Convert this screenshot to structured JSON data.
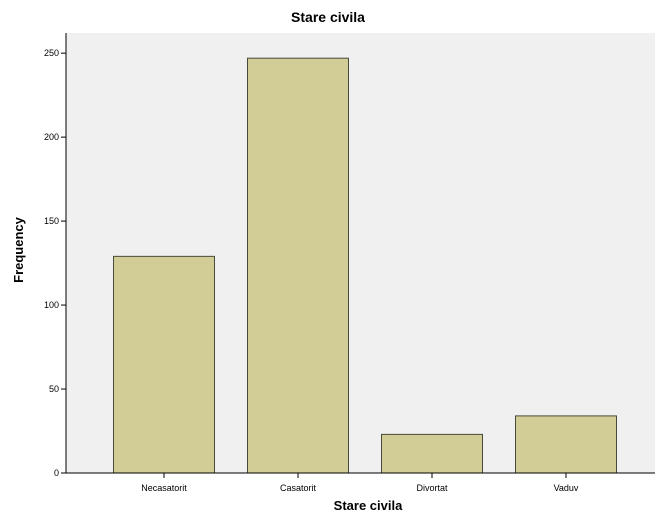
{
  "chart_data": {
    "type": "bar",
    "title": "Stare civila",
    "xlabel": "Stare civila",
    "ylabel": "Frequency",
    "categories": [
      "Necasatorit",
      "Casatorit",
      "Divortat",
      "Vaduv"
    ],
    "values": [
      129,
      247,
      23,
      34
    ],
    "ylim": [
      0,
      262
    ],
    "yticks": [
      0,
      50,
      100,
      150,
      200,
      250
    ],
    "grid": false,
    "legend": "none",
    "colors": {
      "plot_background": "#f0f0f0",
      "bar_fill": "#d2cc96",
      "bar_stroke": "#4a4a3a",
      "axis": "#000000"
    }
  }
}
